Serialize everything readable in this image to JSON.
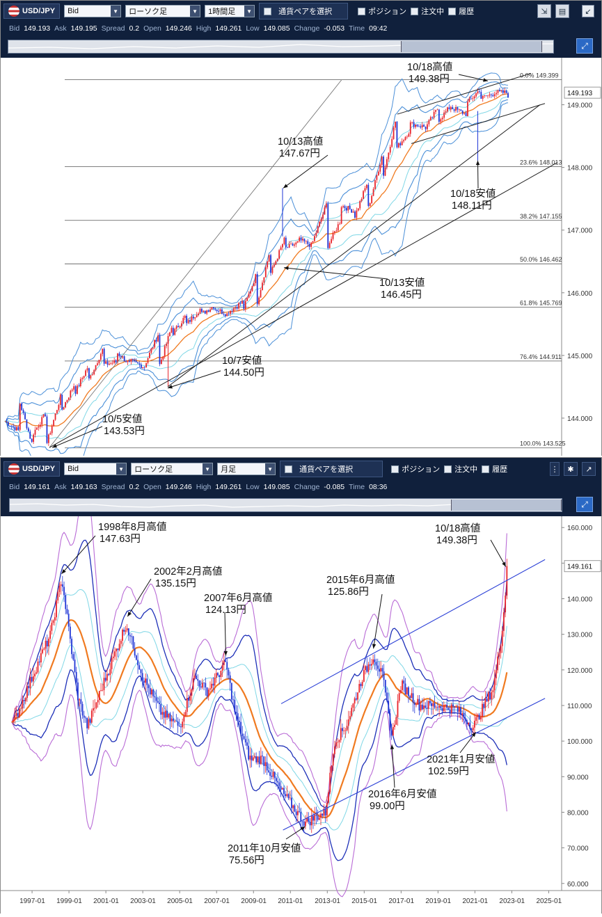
{
  "icons": {
    "flag": "us-jp-flag-icon",
    "dropdown": "chevron-down-icon",
    "checkbox": "checkbox-icon",
    "resize": "resize-icon",
    "newwin": "new-window-icon",
    "gear": "gear-icon",
    "expand": "expand-icon",
    "navigator": "navigator-expand-icon"
  },
  "top": {
    "toolbar": {
      "pair": "USD/JPY",
      "price_type": "Bid",
      "chart_style": "ローソク足",
      "period": "1時間足",
      "select_pair": "通貨ペアを選択",
      "position": "ポジション",
      "orders": "注文中",
      "history": "履歴"
    },
    "quote": [
      {
        "label": "Bid",
        "value": "149.193"
      },
      {
        "label": "Ask",
        "value": "149.195"
      },
      {
        "label": "Spread",
        "value": "0.2"
      },
      {
        "label": "Open",
        "value": "149.246"
      },
      {
        "label": "High",
        "value": "149.261"
      },
      {
        "label": "Low",
        "value": "149.085"
      },
      {
        "label": "Change",
        "value": "-0.053"
      },
      {
        "label": "Time",
        "value": "09:42"
      }
    ],
    "navigator_fraction": [
      0.72,
      0.98
    ]
  },
  "bottom": {
    "toolbar": {
      "pair": "USD/JPY",
      "price_type": "Bid",
      "chart_style": "ローソク足",
      "period": "月足",
      "select_pair": "通貨ペアを選択",
      "position": "ポジション",
      "orders": "注文中",
      "history": "履歴"
    },
    "quote": [
      {
        "label": "Bid",
        "value": "149.161"
      },
      {
        "label": "Ask",
        "value": "149.163"
      },
      {
        "label": "Spread",
        "value": "0.2"
      },
      {
        "label": "Open",
        "value": "149.246"
      },
      {
        "label": "High",
        "value": "149.261"
      },
      {
        "label": "Low",
        "value": "149.085"
      },
      {
        "label": "Change",
        "value": "-0.085"
      },
      {
        "label": "Time",
        "value": "08:36"
      }
    ],
    "navigator_fraction": [
      0.8,
      1.0
    ]
  },
  "colors": {
    "up": "#e8232a",
    "down": "#1f35d6",
    "ma": "#f07a20",
    "band1": "#7fd7e6",
    "band2": "#4a8fd8",
    "band3": "#1d2fb8",
    "band4": "#b96bd6",
    "fib": "#555555",
    "trend": "#222222",
    "channel": "#2a3fd6"
  },
  "chart_data": [
    {
      "type": "candlestick",
      "timeframe": "1時間足",
      "ylim": [
        143.4,
        149.75
      ],
      "yticks": [
        "149.000",
        "148.000",
        "147.000",
        "146.000",
        "145.000",
        "144.000"
      ],
      "current_price": "149.193",
      "ohlc_keypoints": [
        [
          143.95,
          144.0
        ],
        [
          144.3,
          143.8
        ],
        [
          143.75,
          143.55
        ],
        [
          143.6,
          144.1
        ],
        [
          144.1,
          144.35
        ],
        [
          144.4,
          144.55
        ],
        [
          144.6,
          144.85
        ],
        [
          144.85,
          145.1
        ],
        [
          145.05,
          144.9
        ],
        [
          144.9,
          144.85
        ],
        [
          144.85,
          144.82
        ],
        [
          144.8,
          145.35
        ],
        [
          145.35,
          145.5
        ],
        [
          145.5,
          145.65
        ],
        [
          145.65,
          145.75
        ],
        [
          145.75,
          145.8
        ],
        [
          145.7,
          145.65
        ],
        [
          145.7,
          145.85
        ],
        [
          145.8,
          146.3
        ],
        [
          146.3,
          146.7
        ],
        [
          146.7,
          146.85
        ],
        [
          146.85,
          146.8
        ],
        [
          146.8,
          146.75
        ],
        [
          146.7,
          147.4
        ],
        [
          147.4,
          147.15
        ],
        [
          147.2,
          147.3
        ],
        [
          147.35,
          147.8
        ],
        [
          147.8,
          148.2
        ],
        [
          148.3,
          148.8
        ],
        [
          148.7,
          148.6
        ],
        [
          148.6,
          148.65
        ],
        [
          148.75,
          148.95
        ],
        [
          148.95,
          149.0
        ],
        [
          149.0,
          148.85
        ],
        [
          149.1,
          149.25
        ],
        [
          149.2,
          149.18
        ],
        [
          149.15,
          149.19
        ]
      ],
      "fibonacci": [
        {
          "label": "0.0%",
          "value": "149.399"
        },
        {
          "label": "23.6%",
          "value": "148.013"
        },
        {
          "label": "38.2%",
          "value": "147.155"
        },
        {
          "label": "50.0%",
          "value": "146.462"
        },
        {
          "label": "61.8%",
          "value": "145.769"
        },
        {
          "label": "76.4%",
          "value": "144.911"
        },
        {
          "label": "100.0%",
          "value": "143.525"
        }
      ],
      "annotations": [
        {
          "line1": "10/18高値",
          "line2": "149.38円"
        },
        {
          "line1": "10/13高値",
          "line2": "147.67円"
        },
        {
          "line1": "10/18安値",
          "line2": "148.11円"
        },
        {
          "line1": "10/13安値",
          "line2": "146.45円"
        },
        {
          "line1": "10/7安値",
          "line2": "144.50円"
        },
        {
          "line1": "10/5安値",
          "line2": "143.53円"
        }
      ]
    },
    {
      "type": "candlestick",
      "timeframe": "月足",
      "ylim": [
        58,
        162
      ],
      "yticks": [
        "160.000",
        "150.000",
        "140.000",
        "130.000",
        "120.000",
        "110.000",
        "100.000",
        "90.000",
        "80.000",
        "70.000",
        "60.000"
      ],
      "current_price": "149.161",
      "xticks": [
        "1997-01",
        "1999-01",
        "2001-01",
        "2003-01",
        "2005-01",
        "2007-01",
        "2009-01",
        "2011-01",
        "2013-01",
        "2015-01",
        "2017-01",
        "2019-01",
        "2021-01",
        "2023-01",
        "2025-01"
      ],
      "monthly_keypoints": [
        [
          1996.0,
          105
        ],
        [
          1997.0,
          118
        ],
        [
          1998.0,
          130
        ],
        [
          1998.6,
          146
        ],
        [
          1999.5,
          112
        ],
        [
          2000.0,
          104
        ],
        [
          2001.0,
          118
        ],
        [
          2002.1,
          133
        ],
        [
          2003.0,
          118
        ],
        [
          2004.0,
          108
        ],
        [
          2005.0,
          104
        ],
        [
          2005.8,
          118
        ],
        [
          2006.5,
          114
        ],
        [
          2007.5,
          122
        ],
        [
          2008.0,
          108
        ],
        [
          2008.8,
          95
        ],
        [
          2009.5,
          95
        ],
        [
          2010.5,
          86
        ],
        [
          2011.8,
          77
        ],
        [
          2012.5,
          79
        ],
        [
          2012.9,
          80
        ],
        [
          2013.4,
          100
        ],
        [
          2014.0,
          104
        ],
        [
          2014.9,
          118
        ],
        [
          2015.5,
          124
        ],
        [
          2016.0,
          118
        ],
        [
          2016.5,
          101
        ],
        [
          2017.0,
          116
        ],
        [
          2018.0,
          110
        ],
        [
          2019.0,
          110
        ],
        [
          2020.0,
          109
        ],
        [
          2020.9,
          104
        ],
        [
          2021.5,
          110
        ],
        [
          2022.0,
          115
        ],
        [
          2022.4,
          128
        ],
        [
          2022.75,
          146
        ],
        [
          2022.8,
          149.16
        ]
      ],
      "annotations": [
        {
          "line1": "1998年8月高値",
          "line2": "147.63円"
        },
        {
          "line1": "2002年2月高値",
          "line2": "135.15円"
        },
        {
          "line1": "2007年6月高値",
          "line2": "124.13円"
        },
        {
          "line1": "2015年6月高値",
          "line2": "125.86円"
        },
        {
          "line1": "10/18高値",
          "line2": "149.38円"
        },
        {
          "line1": "2021年1月安値",
          "line2": "102.59円"
        },
        {
          "line1": "2016年6月安値",
          "line2": "99.00円"
        },
        {
          "line1": "2011年10月安値",
          "line2": "75.56円"
        }
      ]
    }
  ]
}
